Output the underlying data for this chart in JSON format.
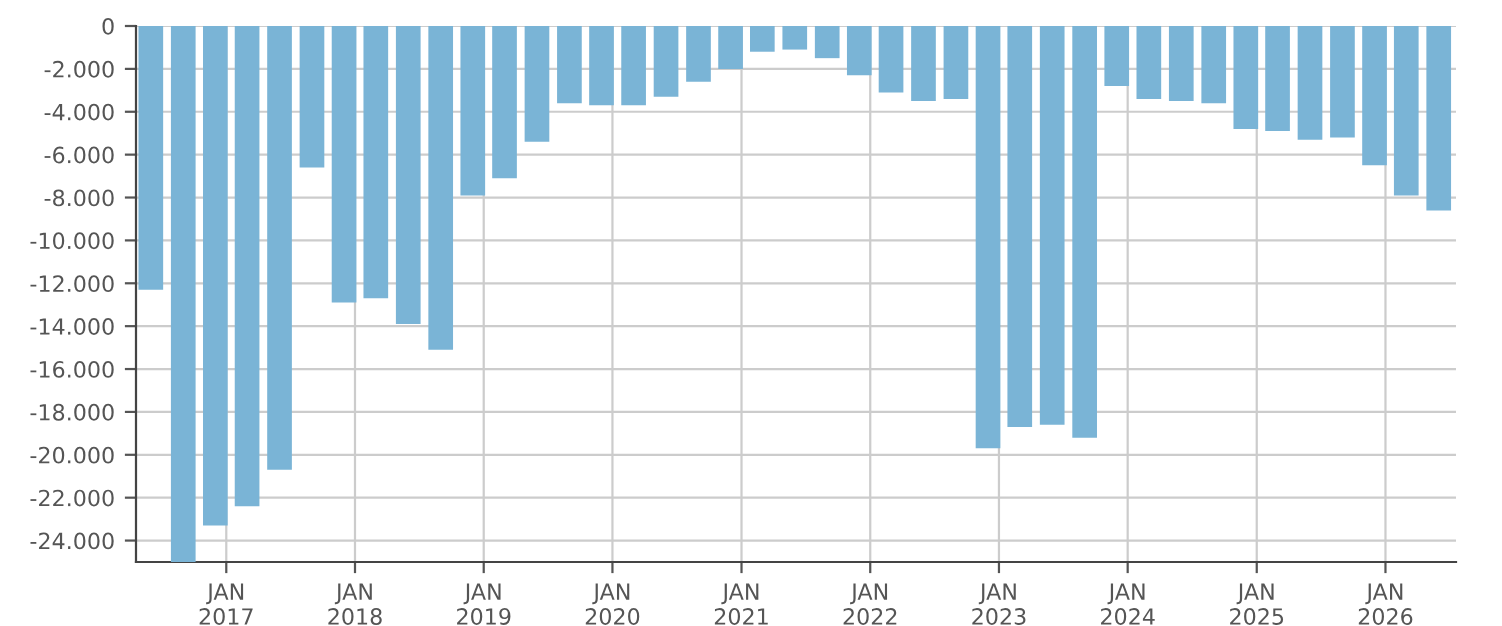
{
  "chart_data": {
    "type": "bar",
    "x": [
      "2016-06",
      "2016-09",
      "2016-12",
      "2017-03",
      "2017-06",
      "2017-09",
      "2017-12",
      "2018-03",
      "2018-06",
      "2018-09",
      "2018-12",
      "2019-03",
      "2019-06",
      "2019-09",
      "2019-12",
      "2020-03",
      "2020-06",
      "2020-09",
      "2020-12",
      "2021-03",
      "2021-06",
      "2021-09",
      "2021-12",
      "2022-03",
      "2022-06",
      "2022-09",
      "2022-12",
      "2023-03",
      "2023-06",
      "2023-09",
      "2023-12",
      "2024-03",
      "2024-06",
      "2024-09",
      "2024-12",
      "2025-03",
      "2025-06",
      "2025-09",
      "2025-12",
      "2026-03",
      "2026-06"
    ],
    "values": [
      -12300,
      -25000,
      -23300,
      -22400,
      -20700,
      -6600,
      -12900,
      -12700,
      -13900,
      -15100,
      -7900,
      -7100,
      -5400,
      -3600,
      -3700,
      -3700,
      -3300,
      -2600,
      -2000,
      -1200,
      -1100,
      -1500,
      -2300,
      -3100,
      -3500,
      -3400,
      -19700,
      -18700,
      -18600,
      -19200,
      -2800,
      -3400,
      -3500,
      -3600,
      -4800,
      -4900,
      -5300,
      -5200,
      -6500,
      -7900,
      -8600
    ],
    "color": "#7ab4d6",
    "xlim": [
      "2016-04-20",
      "2026-07-20"
    ],
    "xticks": [
      {
        "value": "2017-01",
        "label": "JAN\n2017"
      },
      {
        "value": "2018-01",
        "label": "JAN\n2018"
      },
      {
        "value": "2019-01",
        "label": "JAN\n2019"
      },
      {
        "value": "2020-01",
        "label": "JAN\n2020"
      },
      {
        "value": "2021-01",
        "label": "JAN\n2021"
      },
      {
        "value": "2022-01",
        "label": "JAN\n2022"
      },
      {
        "value": "2023-01",
        "label": "JAN\n2023"
      },
      {
        "value": "2024-01",
        "label": "JAN\n2024"
      },
      {
        "value": "2025-01",
        "label": "JAN\n2025"
      },
      {
        "value": "2026-01",
        "label": "JAN\n2026"
      }
    ],
    "ylim": [
      -25000,
      0
    ],
    "yticks": [
      0,
      {
        "value": -2000,
        "label": "-2.000"
      },
      {
        "value": -4000,
        "label": "-4.000"
      },
      {
        "value": -6000,
        "label": "-6.000"
      },
      {
        "value": -8000,
        "label": "-8.000"
      },
      {
        "value": -10000,
        "label": "-10.000"
      },
      {
        "value": -12000,
        "label": "-12.000"
      },
      {
        "value": -14000,
        "label": "-14.000"
      },
      {
        "value": -16000,
        "label": "-16.000"
      },
      {
        "value": -18000,
        "label": "-18.000"
      },
      {
        "value": -20000,
        "label": "-20.000"
      },
      {
        "value": -22000,
        "label": "-22.000"
      },
      {
        "value": -24000,
        "label": "-24.000"
      }
    ],
    "grid": true
  }
}
